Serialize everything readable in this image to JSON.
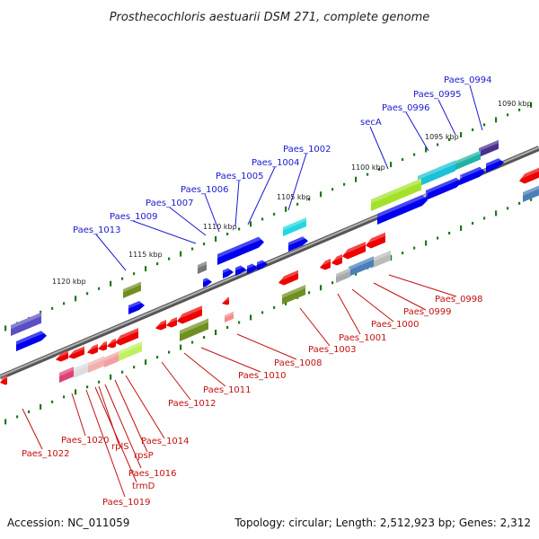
{
  "title": "Prosthecochloris aestuarii DSM 271, complete genome",
  "footer": {
    "accession": "Accession: NC_011059",
    "summary": "Topology: circular; Length: 2,512,923 bp; Genes: 2,312"
  },
  "colors": {
    "forward": "#0000ee",
    "reverse": "#ee0000",
    "top_label": "#1a1ad0",
    "bottom_label": "#c41010",
    "backbone": "#8a8a8a",
    "tick": "#1a7a1a"
  },
  "kbp_markers": [
    "1090 kbp",
    "1095 kbp",
    "1100 kbp",
    "1105 kbp",
    "1110 kbp",
    "1115 kbp",
    "1120 kbp"
  ],
  "top_genes": [
    "Paes_0994",
    "Paes_0995",
    "Paes_0996",
    "secA",
    "Paes_1002",
    "Paes_1004",
    "Paes_1005",
    "Paes_1006",
    "Paes_1007",
    "Paes_1009",
    "Paes_1013"
  ],
  "bottom_genes": [
    "Paes_0998",
    "Paes_0999",
    "Paes_1000",
    "Paes_1001",
    "Paes_1003",
    "Paes_1008",
    "Paes_1010",
    "Paes_1011",
    "Paes_1012",
    "Paes_1014",
    "rpsP",
    "Paes_1016",
    "trmD",
    "Paes_1019",
    "rplS",
    "Paes_1020",
    "Paes_1022"
  ]
}
